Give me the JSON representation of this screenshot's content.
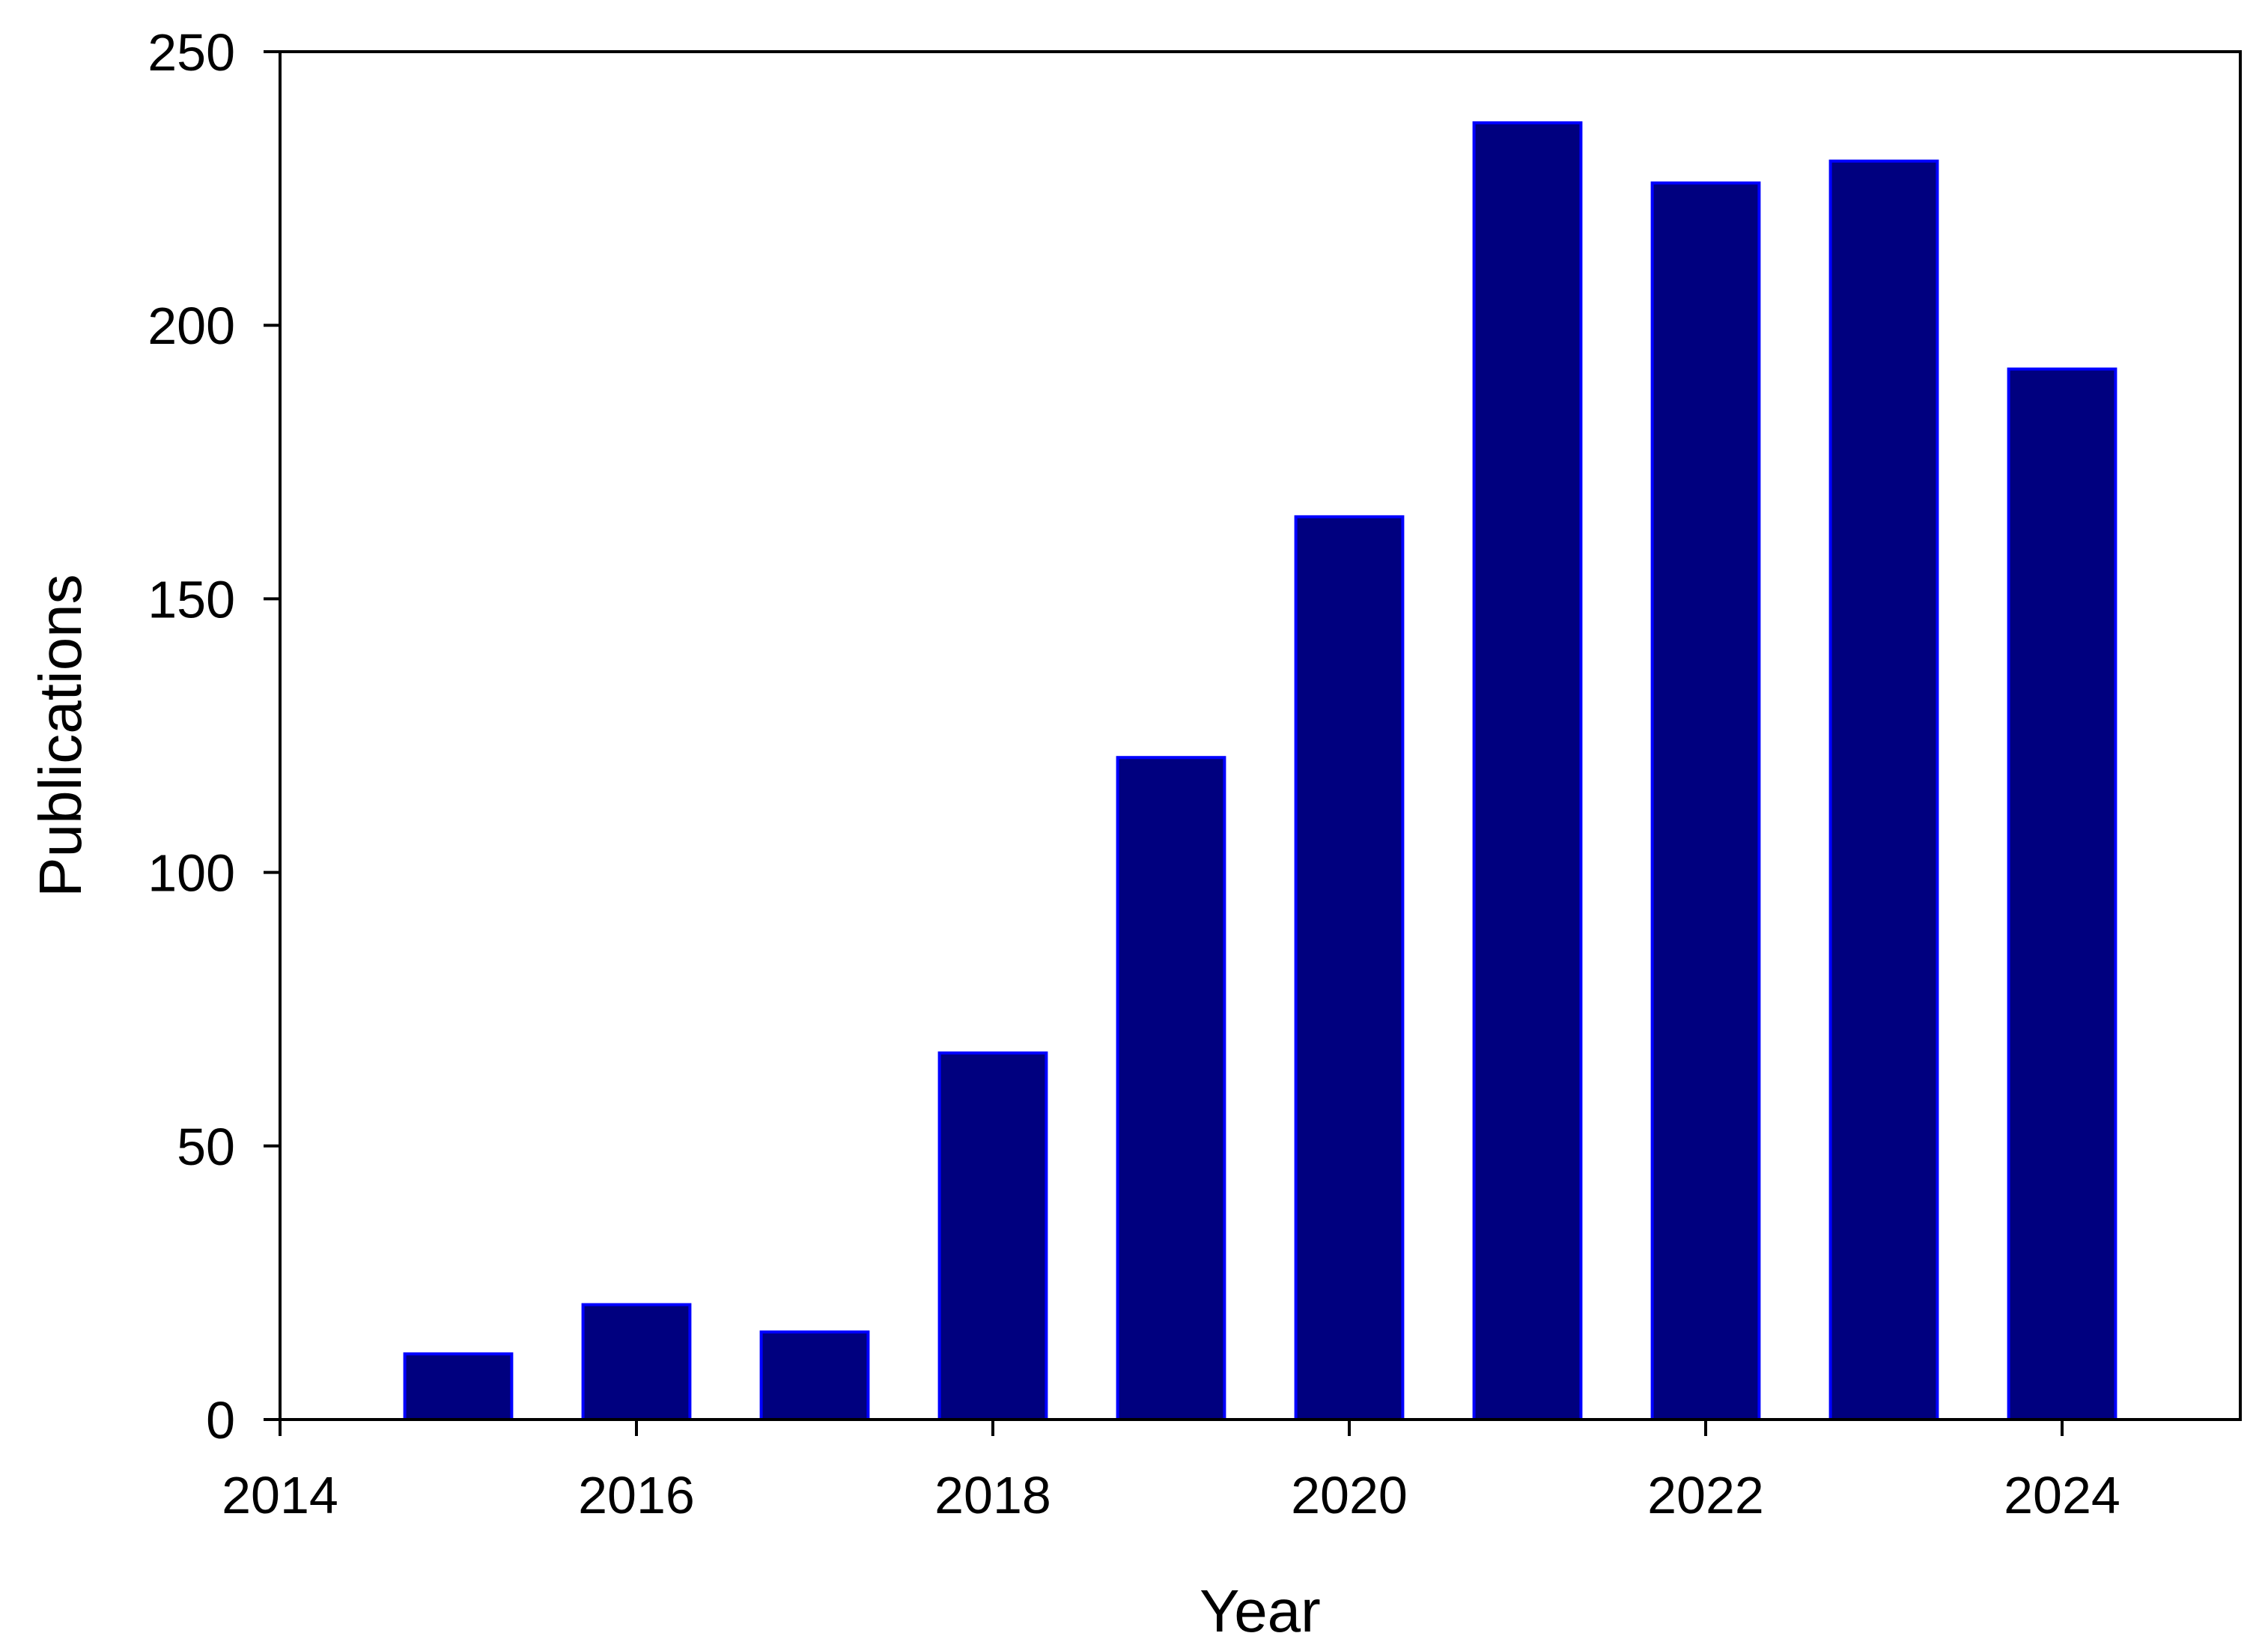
{
  "chart_data": {
    "type": "bar",
    "title": "",
    "xlabel": "Year",
    "ylabel": "Publications",
    "x": [
      2015,
      2016,
      2017,
      2018,
      2019,
      2020,
      2021,
      2022,
      2023,
      2024
    ],
    "values": [
      12,
      21,
      16,
      67,
      121,
      165,
      237,
      226,
      230,
      192
    ],
    "xlim": [
      2014,
      2025
    ],
    "ylim": [
      0,
      250
    ],
    "xticks": [
      "2014",
      "2016",
      "2018",
      "2020",
      "2022",
      "2024"
    ],
    "yticks": [
      "0",
      "50",
      "100",
      "150",
      "200",
      "250"
    ],
    "grid": false,
    "legend": "none",
    "bar_fill_color": "#00007F",
    "bar_edge_color": "#0000FF"
  }
}
